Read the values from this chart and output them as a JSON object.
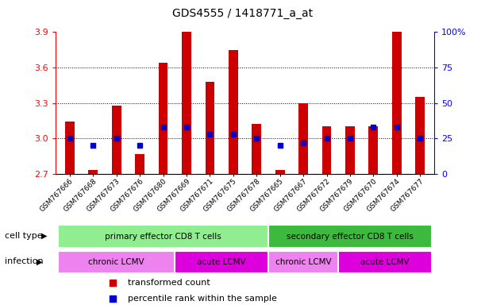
{
  "title": "GDS4555 / 1418771_a_at",
  "samples": [
    "GSM767666",
    "GSM767668",
    "GSM767673",
    "GSM767676",
    "GSM767680",
    "GSM767669",
    "GSM767671",
    "GSM767675",
    "GSM767678",
    "GSM767665",
    "GSM767667",
    "GSM767672",
    "GSM767679",
    "GSM767670",
    "GSM767674",
    "GSM767677"
  ],
  "transformed_count": [
    3.14,
    2.73,
    3.28,
    2.87,
    3.64,
    3.9,
    3.48,
    3.75,
    3.12,
    2.73,
    3.3,
    3.1,
    3.1,
    3.1,
    3.9,
    3.35
  ],
  "percentile_rank": [
    25,
    20,
    25,
    20,
    33,
    33,
    28,
    28,
    25,
    20,
    22,
    25,
    25,
    33,
    33,
    25
  ],
  "ymin": 2.7,
  "ymax": 3.9,
  "yticks": [
    2.7,
    3.0,
    3.3,
    3.6,
    3.9
  ],
  "y2min": 0,
  "y2max": 100,
  "y2ticks": [
    0,
    25,
    50,
    75,
    100
  ],
  "y2ticklabels": [
    "0",
    "25",
    "50",
    "75",
    "100%"
  ],
  "bar_color": "#cc0000",
  "dot_color": "#0000cc",
  "bar_width": 0.4,
  "cell_type_groups": [
    {
      "label": "primary effector CD8 T cells",
      "start": 0,
      "end": 9,
      "color": "#90ee90"
    },
    {
      "label": "secondary effector CD8 T cells",
      "start": 9,
      "end": 16,
      "color": "#3dba3d"
    }
  ],
  "infection_groups": [
    {
      "label": "chronic LCMV",
      "start": 0,
      "end": 5,
      "color": "#ee82ee"
    },
    {
      "label": "acute LCMV",
      "start": 5,
      "end": 9,
      "color": "#dd00dd"
    },
    {
      "label": "chronic LCMV",
      "start": 9,
      "end": 12,
      "color": "#ee82ee"
    },
    {
      "label": "acute LCMV",
      "start": 12,
      "end": 16,
      "color": "#dd00dd"
    }
  ],
  "legend_items": [
    {
      "label": "transformed count",
      "color": "#cc0000"
    },
    {
      "label": "percentile rank within the sample",
      "color": "#0000cc"
    }
  ],
  "cell_type_label": "cell type",
  "infection_label": "infection"
}
